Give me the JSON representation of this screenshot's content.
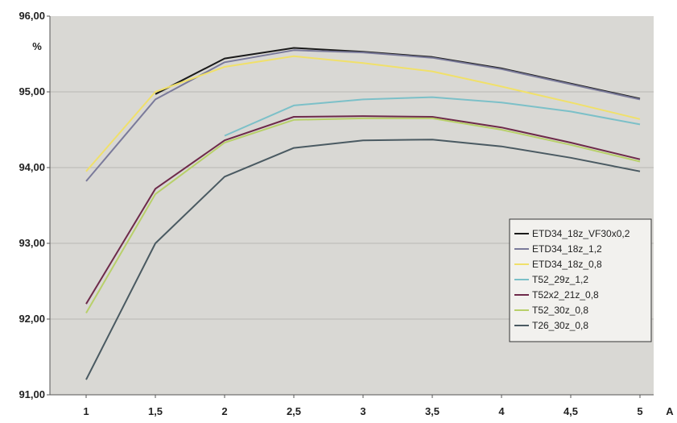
{
  "chart_data": {
    "type": "line",
    "y_unit": "%",
    "x_unit": "A",
    "x": [
      1,
      1.5,
      2,
      2.5,
      3,
      3.5,
      4,
      4.5,
      5
    ],
    "x_tick_labels": [
      "1",
      "1,5",
      "2",
      "2,5",
      "3",
      "3,5",
      "4",
      "4,5",
      "5"
    ],
    "ylim": [
      91,
      96
    ],
    "y_ticks": [
      91,
      92,
      93,
      94,
      95,
      96
    ],
    "y_tick_labels": [
      "91,00",
      "92,00",
      "93,00",
      "94,00",
      "95,00",
      "96,00"
    ],
    "grid": "horizontal",
    "legend_position": "right",
    "series": [
      {
        "name": "ETD34_18z_VF30x0,2",
        "color": "#1a1a1a",
        "values": [
          null,
          94.97,
          95.44,
          95.58,
          95.53,
          95.46,
          95.31,
          95.11,
          94.91
        ]
      },
      {
        "name": "ETD34_18z_1,2",
        "color": "#7a7a9a",
        "values": [
          93.82,
          94.9,
          95.39,
          95.55,
          95.52,
          95.45,
          95.3,
          95.1,
          94.9
        ]
      },
      {
        "name": "ETD34_18z_0,8",
        "color": "#f0e06a",
        "values": [
          93.95,
          95.0,
          95.33,
          95.47,
          95.38,
          95.27,
          95.07,
          94.86,
          94.64
        ]
      },
      {
        "name": "T52_29z_1,2",
        "color": "#7cc0c8",
        "values": [
          null,
          null,
          94.42,
          94.82,
          94.9,
          94.93,
          94.86,
          94.74,
          94.57
        ]
      },
      {
        "name": "T52x2_21z_0,8",
        "color": "#6e2a4a",
        "values": [
          92.2,
          93.72,
          94.36,
          94.67,
          94.68,
          94.67,
          94.53,
          94.33,
          94.11
        ]
      },
      {
        "name": "T52_30z_0,8",
        "color": "#b8d06a",
        "values": [
          92.08,
          93.65,
          94.33,
          94.63,
          94.65,
          94.65,
          94.5,
          94.3,
          94.08
        ]
      },
      {
        "name": "T26_30z_0,8",
        "color": "#4a5a62",
        "values": [
          91.2,
          93.0,
          93.88,
          94.26,
          94.36,
          94.37,
          94.28,
          94.13,
          93.95
        ]
      }
    ]
  }
}
